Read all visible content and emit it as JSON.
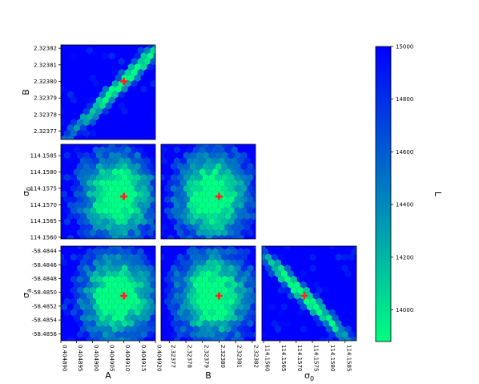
{
  "chart_data": {
    "type": "heatmap",
    "variant": "corner-plot (hexbin, lower triangle)",
    "parameters": [
      {
        "id": "A",
        "label": "A",
        "sub": "",
        "ticks": [
          "0.404890",
          "0.404895",
          "0.404900",
          "0.404905",
          "0.404910",
          "0.404915",
          "0.404920"
        ],
        "range": [
          0.40489,
          0.40492
        ],
        "best": 0.40491
      },
      {
        "id": "B",
        "label": "B",
        "sub": "",
        "ticks": [
          "2.32377",
          "2.32378",
          "2.32379",
          "2.32380",
          "2.32381",
          "2.32382"
        ],
        "range": [
          2.323765,
          2.323822
        ],
        "best": 2.3238
      },
      {
        "id": "sigma0",
        "label": "σ",
        "sub": "0",
        "ticks": [
          "114.1560",
          "114.1565",
          "114.1570",
          "114.1575",
          "114.1580",
          "114.1585"
        ],
        "range": [
          114.15595,
          114.15885
        ],
        "best": 114.15725
      },
      {
        "id": "sigmaa",
        "label": "σ",
        "sub": "a",
        "ticks": [
          "-58.4844",
          "-58.4846",
          "-58.4848",
          "-58.4850",
          "-58.4852",
          "-58.4854",
          "-58.4856"
        ],
        "range": [
          -58.4857,
          -58.48433
        ],
        "best": -58.48505
      }
    ],
    "panels": [
      {
        "row": 1,
        "col": 0,
        "x": "A",
        "y": "B",
        "shape": "diagonal-band",
        "corr": 0.95
      },
      {
        "row": 2,
        "col": 0,
        "x": "A",
        "y": "sigma0",
        "shape": "blob",
        "corr": 0.0
      },
      {
        "row": 2,
        "col": 1,
        "x": "B",
        "y": "sigma0",
        "shape": "blob",
        "corr": 0.0
      },
      {
        "row": 3,
        "col": 0,
        "x": "A",
        "y": "sigmaa",
        "shape": "blob",
        "corr": 0.0
      },
      {
        "row": 3,
        "col": 1,
        "x": "B",
        "y": "sigmaa",
        "shape": "blob",
        "corr": 0.0
      },
      {
        "row": 3,
        "col": 2,
        "x": "sigma0",
        "y": "sigmaa",
        "shape": "diagonal-band",
        "corr": -0.97
      }
    ],
    "colorbar": {
      "label": "L",
      "range": [
        13880,
        15000
      ],
      "ticks": [
        "14000",
        "14200",
        "14400",
        "14600",
        "14800",
        "15000"
      ],
      "colormap": "winter_r",
      "color_low": "#00ff80",
      "color_high": "#0000ff"
    },
    "marker": {
      "symbol": "plus",
      "color": "#ff2020"
    }
  }
}
